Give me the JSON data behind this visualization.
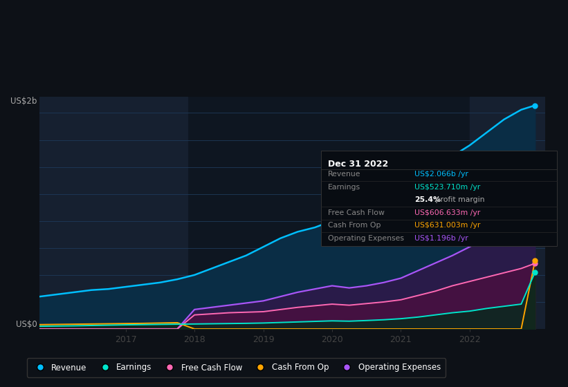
{
  "background_color": "#0d1117",
  "plot_bg_color": "#0e1621",
  "ylabel_top": "US$2b",
  "ylabel_bottom": "US$0",
  "years_x": [
    2015.75,
    2016.0,
    2016.25,
    2016.5,
    2016.75,
    2017.0,
    2017.25,
    2017.5,
    2017.75,
    2018.0,
    2018.25,
    2018.5,
    2018.75,
    2019.0,
    2019.25,
    2019.5,
    2019.75,
    2020.0,
    2020.25,
    2020.5,
    2020.75,
    2021.0,
    2021.25,
    2021.5,
    2021.75,
    2022.0,
    2022.25,
    2022.5,
    2022.75,
    2022.95
  ],
  "revenue": [
    0.3,
    0.32,
    0.34,
    0.36,
    0.37,
    0.39,
    0.41,
    0.43,
    0.46,
    0.5,
    0.56,
    0.62,
    0.68,
    0.76,
    0.84,
    0.9,
    0.94,
    1.0,
    0.98,
    1.04,
    1.12,
    1.22,
    1.35,
    1.48,
    1.6,
    1.7,
    1.82,
    1.94,
    2.03,
    2.07
  ],
  "earnings": [
    0.025,
    0.027,
    0.029,
    0.032,
    0.035,
    0.038,
    0.04,
    0.042,
    0.044,
    0.046,
    0.048,
    0.05,
    0.052,
    0.055,
    0.06,
    0.065,
    0.07,
    0.075,
    0.072,
    0.078,
    0.085,
    0.095,
    0.11,
    0.13,
    0.15,
    0.165,
    0.19,
    0.21,
    0.23,
    0.524
  ],
  "free_cash_flow": [
    0.0,
    0.0,
    0.0,
    0.0,
    0.0,
    0.0,
    0.0,
    0.0,
    0.0,
    0.13,
    0.14,
    0.15,
    0.155,
    0.16,
    0.18,
    0.2,
    0.215,
    0.23,
    0.22,
    0.235,
    0.25,
    0.27,
    0.31,
    0.35,
    0.4,
    0.44,
    0.48,
    0.52,
    0.56,
    0.607
  ],
  "cash_from_op": [
    0.04,
    0.042,
    0.044,
    0.046,
    0.048,
    0.05,
    0.052,
    0.055,
    0.058,
    0.0,
    0.0,
    0.0,
    0.0,
    0.0,
    0.0,
    0.0,
    0.0,
    0.0,
    0.0,
    0.0,
    0.0,
    0.0,
    0.0,
    0.0,
    0.0,
    0.0,
    0.0,
    0.0,
    0.0,
    0.631
  ],
  "operating_expenses": [
    0.0,
    0.0,
    0.0,
    0.0,
    0.0,
    0.0,
    0.0,
    0.0,
    0.0,
    0.18,
    0.2,
    0.22,
    0.24,
    0.26,
    0.3,
    0.34,
    0.37,
    0.4,
    0.38,
    0.4,
    0.43,
    0.47,
    0.54,
    0.61,
    0.68,
    0.76,
    0.85,
    0.95,
    1.05,
    1.196
  ],
  "revenue_color": "#00bfff",
  "earnings_color": "#00e5cc",
  "free_cash_flow_color": "#ff69b4",
  "cash_from_op_color": "#ffa500",
  "operating_expenses_color": "#a855f7",
  "xlim": [
    2015.75,
    2023.1
  ],
  "ylim": [
    0,
    2.15
  ],
  "highlight1_start": 2015.75,
  "highlight1_end": 2017.9,
  "highlight2_start": 2022.0,
  "highlight2_end": 2023.1,
  "highlight_color": "#162030",
  "infobox": {
    "title": "Dec 31 2022",
    "rows": [
      {
        "label": "Revenue",
        "value": "US$2.066b /yr",
        "value_color": "#00bfff",
        "separator_after": true
      },
      {
        "label": "Earnings",
        "value": "US$523.710m /yr",
        "value_color": "#00e5cc",
        "separator_after": false
      },
      {
        "label": "",
        "value": "25.4% profit margin",
        "value_color": "#cccccc",
        "bold_prefix": "25.4%",
        "separator_after": true
      },
      {
        "label": "Free Cash Flow",
        "value": "US$606.633m /yr",
        "value_color": "#ff69b4",
        "separator_after": true
      },
      {
        "label": "Cash From Op",
        "value": "US$631.003m /yr",
        "value_color": "#ffa500",
        "separator_after": true
      },
      {
        "label": "Operating Expenses",
        "value": "US$1.196b /yr",
        "value_color": "#a855f7",
        "separator_after": false
      }
    ]
  },
  "legend_items": [
    {
      "label": "Revenue",
      "color": "#00bfff"
    },
    {
      "label": "Earnings",
      "color": "#00e5cc"
    },
    {
      "label": "Free Cash Flow",
      "color": "#ff69b4"
    },
    {
      "label": "Cash From Op",
      "color": "#ffa500"
    },
    {
      "label": "Operating Expenses",
      "color": "#a855f7"
    }
  ]
}
